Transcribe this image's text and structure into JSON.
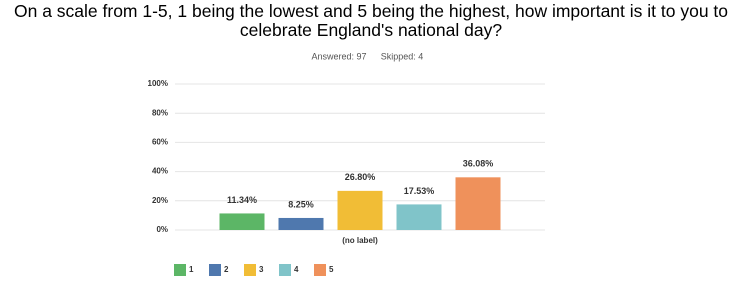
{
  "chart_data": {
    "type": "bar",
    "title": "On a scale from 1-5, 1 being the lowest and 5 being the highest, how important is it to you to celebrate England's national day?",
    "responses": [
      "Answered: 97",
      "Skipped: 4"
    ],
    "categories": [
      "(no label)"
    ],
    "series": [
      {
        "name": "1",
        "color": "#5cb666",
        "values": [
          11.34
        ],
        "value_labels": [
          "11.34%"
        ]
      },
      {
        "name": "2",
        "color": "#4f78ae",
        "values": [
          8.25
        ],
        "value_labels": [
          "8.25%"
        ]
      },
      {
        "name": "3",
        "color": "#f1bd36",
        "values": [
          26.8
        ],
        "value_labels": [
          "26.80%"
        ]
      },
      {
        "name": "4",
        "color": "#80c4c9",
        "values": [
          17.53
        ],
        "value_labels": [
          "17.53%"
        ]
      },
      {
        "name": "5",
        "color": "#ef915b",
        "values": [
          36.08
        ],
        "value_labels": [
          "36.08%"
        ]
      }
    ],
    "ylim": [
      0,
      100
    ],
    "yticks": [
      {
        "value": 0,
        "label": "0%"
      },
      {
        "value": 20,
        "label": "20%"
      },
      {
        "value": 40,
        "label": "40%"
      },
      {
        "value": 60,
        "label": "60%"
      },
      {
        "value": 80,
        "label": "80%"
      },
      {
        "value": 100,
        "label": "100%"
      }
    ],
    "grid": true,
    "legend": "bottom"
  }
}
